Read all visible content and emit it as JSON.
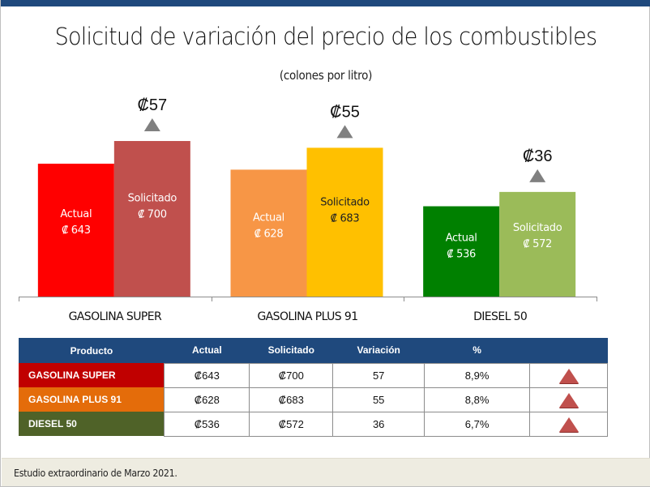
{
  "slide": {
    "title": "Solicitud de variación del precio de los combustibles",
    "subtitle": "(colones por litro)",
    "footer": "Estudio extraordinario de Marzo 2021.",
    "accent_color": "#1f497d"
  },
  "chart_data": {
    "type": "bar",
    "title": "Solicitud de variación del precio de los combustibles",
    "subtitle": "(colones por litro)",
    "xlabel": "",
    "ylabel": "",
    "ylim": [
      309,
      800
    ],
    "grid": false,
    "legend": "none",
    "categories": [
      "GASOLINA SUPER",
      "GASOLINA PLUS 91",
      "DIESEL 50"
    ],
    "series": [
      {
        "name": "Actual",
        "values": [
          643,
          628,
          536
        ],
        "labels": [
          "₡ 643",
          "₡ 628",
          "₡ 536"
        ],
        "colors": [
          "#ff0000",
          "#f79646",
          "#008000"
        ],
        "text_colors": [
          "#ffffff",
          "#ffffff",
          "#ffffff"
        ]
      },
      {
        "name": "Solicitado",
        "values": [
          700,
          683,
          572
        ],
        "labels": [
          "₡ 700",
          "₡ 683",
          "₡ 572"
        ],
        "colors": [
          "#c0504d",
          "#ffc000",
          "#9bbb59"
        ],
        "text_colors": [
          "#ffffff",
          "#222222",
          "#ffffff"
        ]
      }
    ],
    "variations": [
      {
        "label": "₡57",
        "value": 57
      },
      {
        "label": "₡55",
        "value": 55
      },
      {
        "label": "₡36",
        "value": 36
      }
    ],
    "variation_marker_color": "#808080"
  },
  "table": {
    "headers": [
      "Producto",
      "Actual",
      "Solicitado",
      "Variación",
      "%",
      ""
    ],
    "rows": [
      {
        "producto": "GASOLINA SUPER",
        "color": "#c00000",
        "actual": "₡643",
        "solicitado": "₡700",
        "variacion": "57",
        "pct": "8,9%",
        "trend": "up-triangle-icon"
      },
      {
        "producto": "GASOLINA PLUS 91",
        "color": "#e46c0a",
        "actual": "₡628",
        "solicitado": "₡683",
        "variacion": "55",
        "pct": "8,8%",
        "trend": "up-triangle-icon"
      },
      {
        "producto": "DIESEL 50",
        "color": "#4f6228",
        "actual": "₡536",
        "solicitado": "₡572",
        "variacion": "36",
        "pct": "6,7%",
        "trend": "up-triangle-icon"
      }
    ]
  }
}
